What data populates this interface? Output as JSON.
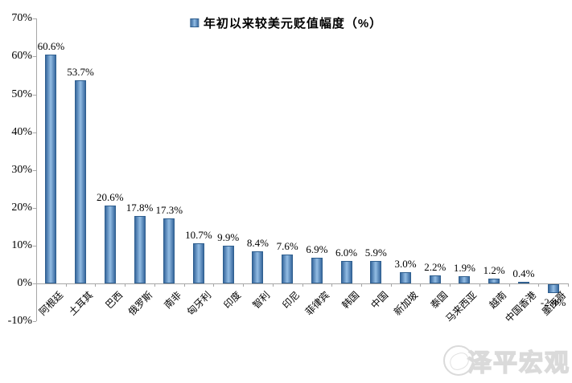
{
  "chart_data": {
    "type": "bar",
    "title": "年初以来较美元贬值幅度（%）",
    "legend": "年初以来较美元贬值幅度（%）",
    "legend_position": "top-center",
    "categories": [
      "阿根廷",
      "土耳其",
      "巴西",
      "俄罗斯",
      "南非",
      "匈牙利",
      "印度",
      "智利",
      "印尼",
      "菲律宾",
      "韩国",
      "中国",
      "新加坡",
      "泰国",
      "马来西亚",
      "越南",
      "中国香港",
      "墨西哥"
    ],
    "values": [
      60.6,
      53.7,
      20.6,
      17.8,
      17.3,
      10.7,
      9.9,
      8.4,
      7.6,
      6.9,
      6.0,
      5.9,
      3.0,
      2.2,
      1.9,
      1.2,
      0.4,
      -2.4
    ],
    "value_labels": [
      "60.6%",
      "53.7%",
      "20.6%",
      "17.8%",
      "17.3%",
      "10.7%",
      "9.9%",
      "8.4%",
      "7.6%",
      "6.9%",
      "6.0%",
      "5.9%",
      "3.0%",
      "2.2%",
      "1.9%",
      "1.2%",
      "0.4%",
      "-2.4%"
    ],
    "xlabel": "",
    "ylabel": "",
    "ylim": [
      -10,
      70
    ],
    "ytick_step": 10,
    "ytick_labels": [
      "70%",
      "60%",
      "50%",
      "40%",
      "30%",
      "20%",
      "10%",
      "0%",
      "-10%"
    ],
    "grid": false,
    "colors": {
      "bar_fill": "#4f81bd",
      "bar_gradient_edge": "#38699f",
      "bar_gradient_center": "#93bde4",
      "bar_border": "#2f5f8f",
      "axis": "#a6a6a6",
      "text": "#000000"
    }
  },
  "watermark": {
    "text": "泽平宏观",
    "logo": "seal-circle-logo"
  }
}
